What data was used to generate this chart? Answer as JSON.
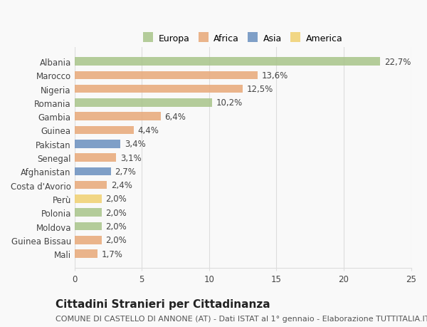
{
  "categories": [
    "Albania",
    "Marocco",
    "Nigeria",
    "Romania",
    "Gambia",
    "Guinea",
    "Pakistan",
    "Senegal",
    "Afghanistan",
    "Costa d'Avorio",
    "Perù",
    "Polonia",
    "Moldova",
    "Guinea Bissau",
    "Mali"
  ],
  "values": [
    22.7,
    13.6,
    12.5,
    10.2,
    6.4,
    4.4,
    3.4,
    3.1,
    2.7,
    2.4,
    2.0,
    2.0,
    2.0,
    2.0,
    1.7
  ],
  "labels": [
    "22,7%",
    "13,6%",
    "12,5%",
    "10,2%",
    "6,4%",
    "4,4%",
    "3,4%",
    "3,1%",
    "2,7%",
    "2,4%",
    "2,0%",
    "2,0%",
    "2,0%",
    "2,0%",
    "1,7%"
  ],
  "continents": [
    "Europa",
    "Africa",
    "Africa",
    "Europa",
    "Africa",
    "Africa",
    "Asia",
    "Africa",
    "Asia",
    "Africa",
    "America",
    "Europa",
    "Europa",
    "Africa",
    "Africa"
  ],
  "continent_colors": {
    "Europa": "#a8c48a",
    "Africa": "#e8a878",
    "Asia": "#6a8fbf",
    "America": "#f0d070"
  },
  "legend_order": [
    "Europa",
    "Africa",
    "Asia",
    "America"
  ],
  "title": "Cittadini Stranieri per Cittadinanza",
  "subtitle": "COMUNE DI CASTELLO DI ANNONE (AT) - Dati ISTAT al 1° gennaio - Elaborazione TUTTITALIA.IT",
  "xlim": [
    0,
    25
  ],
  "xticks": [
    0,
    5,
    10,
    15,
    20,
    25
  ],
  "background_color": "#f9f9f9",
  "grid_color": "#dddddd",
  "bar_height": 0.6,
  "label_fontsize": 8.5,
  "title_fontsize": 11,
  "subtitle_fontsize": 8,
  "ytick_fontsize": 8.5,
  "xtick_fontsize": 8.5
}
